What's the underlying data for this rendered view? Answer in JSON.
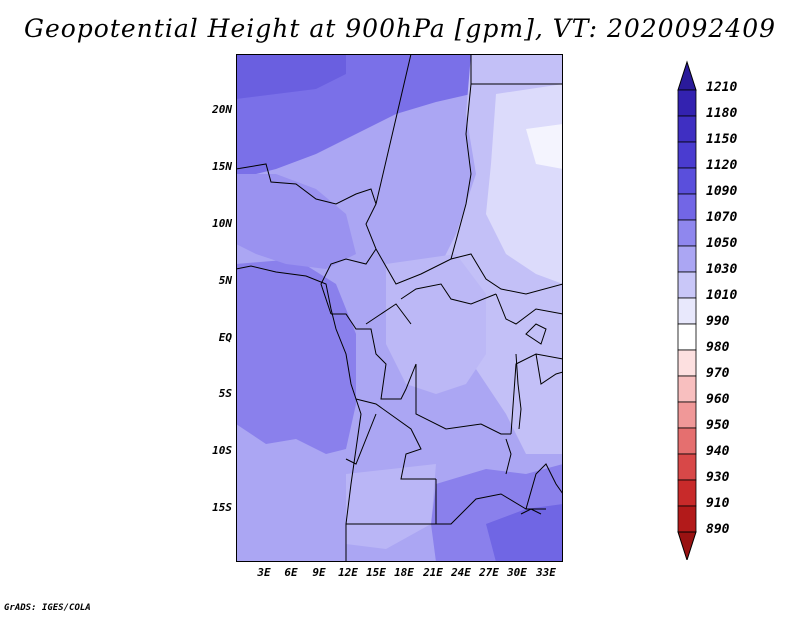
{
  "title": "Geopotential Height at 900hPa [gpm], VT: 2020092409",
  "credit": "GrADS: IGES/COLA",
  "map": {
    "lat_labels": [
      "20N",
      "15N",
      "10N",
      "5N",
      "EQ",
      "5S",
      "10S",
      "15S"
    ],
    "lon_labels": [
      "3E",
      "6E",
      "9E",
      "12E",
      "15E",
      "18E",
      "21E",
      "24E",
      "27E",
      "30E",
      "33E"
    ]
  },
  "colorbar": {
    "levels": [
      "1210",
      "1180",
      "1150",
      "1120",
      "1090",
      "1070",
      "1050",
      "1030",
      "1010",
      "990",
      "980",
      "970",
      "960",
      "950",
      "940",
      "930",
      "910",
      "890"
    ],
    "colors": [
      "#2a1a9a",
      "#3322b0",
      "#3f2fc2",
      "#4a3cd0",
      "#5a4fdc",
      "#7266e6",
      "#8f87ee",
      "#aba6f3",
      "#c9c7f8",
      "#e8e8fc",
      "#ffffff",
      "#fde0e0",
      "#f8bfbf",
      "#f09898",
      "#e56f6f",
      "#d84848",
      "#c82a2a",
      "#b21a1a",
      "#991212"
    ]
  }
}
